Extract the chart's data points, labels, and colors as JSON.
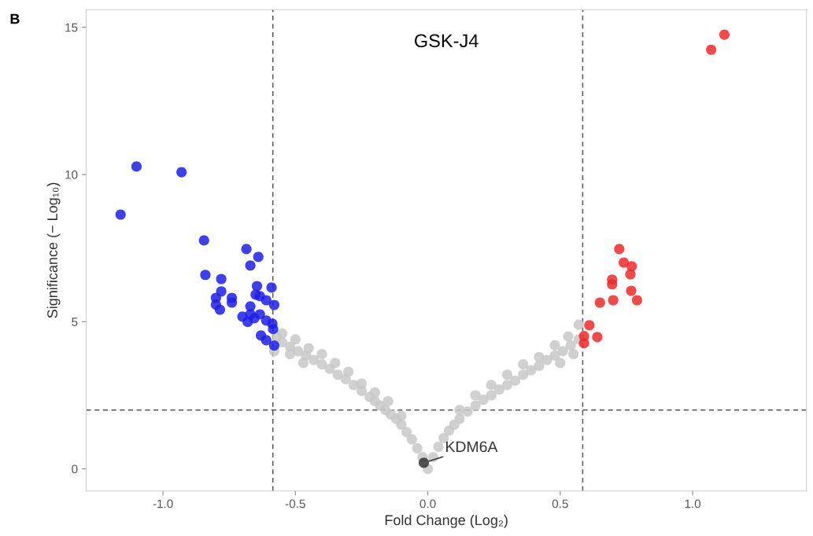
{
  "chart_data": {
    "type": "scatter",
    "title": "GSK-J4",
    "xlabel": "Fold Change (Log₂)",
    "ylabel": "Significance (− Log₁₀)",
    "annotations": [
      "B",
      {
        "text": "KDM6A",
        "x": -0.015,
        "y": 0.21
      }
    ],
    "xlim": [
      -1.29,
      1.43
    ],
    "ylim": [
      -0.75,
      15.6
    ],
    "xticks": [
      {
        "value": -1,
        "label": "-1.0"
      },
      -0.5,
      {
        "value": 0,
        "label": "0.0"
      },
      0.5,
      {
        "value": 1,
        "label": "1.0"
      }
    ],
    "yticks": [
      0,
      5,
      10,
      15
    ],
    "grid": false,
    "legend": false,
    "marker": "circle",
    "ref_lines": [
      {
        "axis": "x",
        "value": -0.585,
        "color": "#555555",
        "line_style": "dashed"
      },
      {
        "axis": "x",
        "value": 0.585,
        "color": "#555555",
        "line_style": "dashed"
      },
      {
        "axis": "y",
        "value": 2,
        "color": "#555555",
        "line_style": "dashed"
      }
    ],
    "series": [
      {
        "color": "#c8c8c8",
        "x": [
          -0.02,
          -0.04,
          -0.06,
          -0.08,
          -0.1,
          -0.12,
          -0.14,
          -0.16,
          -0.18,
          -0.2,
          -0.22,
          -0.25,
          -0.28,
          -0.31,
          -0.34,
          -0.37,
          -0.4,
          -0.43,
          -0.46,
          -0.49,
          -0.52,
          -0.55,
          -0.57,
          -0.1,
          -0.15,
          -0.2,
          -0.25,
          -0.3,
          -0.35,
          -0.4,
          -0.45,
          -0.5,
          -0.55,
          -0.52,
          -0.47,
          -0.58,
          0.0,
          0.02,
          0.04,
          0.06,
          0.08,
          0.1,
          0.12,
          0.15,
          0.18,
          0.21,
          0.24,
          0.27,
          0.3,
          0.33,
          0.36,
          0.39,
          0.42,
          0.45,
          0.48,
          0.51,
          0.54,
          0.57,
          0.12,
          0.18,
          0.24,
          0.3,
          0.36,
          0.42,
          0.48,
          0.53,
          0.57,
          0.55,
          0.5
        ],
        "values": [
          0.4,
          0.7,
          1.0,
          1.25,
          1.5,
          1.7,
          1.85,
          2.0,
          2.15,
          2.3,
          2.45,
          2.65,
          2.85,
          3.05,
          3.2,
          3.4,
          3.55,
          3.7,
          3.85,
          4.0,
          4.15,
          4.3,
          4.5,
          1.8,
          2.3,
          2.6,
          2.9,
          3.3,
          3.6,
          3.9,
          4.1,
          4.4,
          4.6,
          3.9,
          3.6,
          4.0,
          0.0,
          0.4,
          0.75,
          1.05,
          1.3,
          1.5,
          1.7,
          1.95,
          2.15,
          2.35,
          2.5,
          2.7,
          2.85,
          3.0,
          3.2,
          3.35,
          3.5,
          3.7,
          3.85,
          4.0,
          4.2,
          4.4,
          2.0,
          2.5,
          2.85,
          3.2,
          3.55,
          3.8,
          4.2,
          4.5,
          4.9,
          3.9,
          3.6
        ]
      },
      {
        "color": "#1f1fe6",
        "x": [
          -1.1,
          -0.93,
          -1.16,
          -0.845,
          -0.685,
          -0.64,
          -0.67,
          -0.84,
          -0.78,
          -0.645,
          -0.59,
          -0.78,
          -0.8,
          -0.74,
          -0.65,
          -0.634,
          -0.74,
          -0.8,
          -0.785,
          -0.61,
          -0.58,
          -0.67,
          -0.7,
          -0.67,
          -0.634,
          -0.68,
          -0.61,
          -0.587,
          -0.584,
          -0.63,
          -0.61,
          -0.58,
          -0.655
        ],
        "values": [
          10.27,
          10.08,
          8.64,
          7.76,
          7.47,
          7.2,
          6.91,
          6.59,
          6.45,
          6.21,
          6.16,
          6.03,
          5.81,
          5.81,
          5.92,
          5.87,
          5.65,
          5.58,
          5.41,
          5.73,
          5.57,
          5.52,
          5.17,
          5.25,
          5.25,
          4.99,
          5.04,
          4.93,
          4.75,
          4.53,
          4.37,
          4.19,
          5.12
        ]
      },
      {
        "color": "#ee2a2a",
        "x": [
          1.12,
          1.07,
          0.723,
          0.74,
          0.77,
          0.765,
          0.696,
          0.696,
          0.768,
          0.65,
          0.7,
          0.79,
          0.61,
          0.59,
          0.64,
          0.59
        ],
        "values": [
          14.75,
          14.24,
          7.47,
          7.01,
          6.88,
          6.61,
          6.43,
          6.27,
          6.05,
          5.65,
          5.73,
          5.73,
          4.88,
          4.51,
          4.48,
          4.27
        ]
      },
      {
        "color": "#333333",
        "x": [
          -0.015
        ],
        "values": [
          0.21
        ]
      }
    ]
  }
}
